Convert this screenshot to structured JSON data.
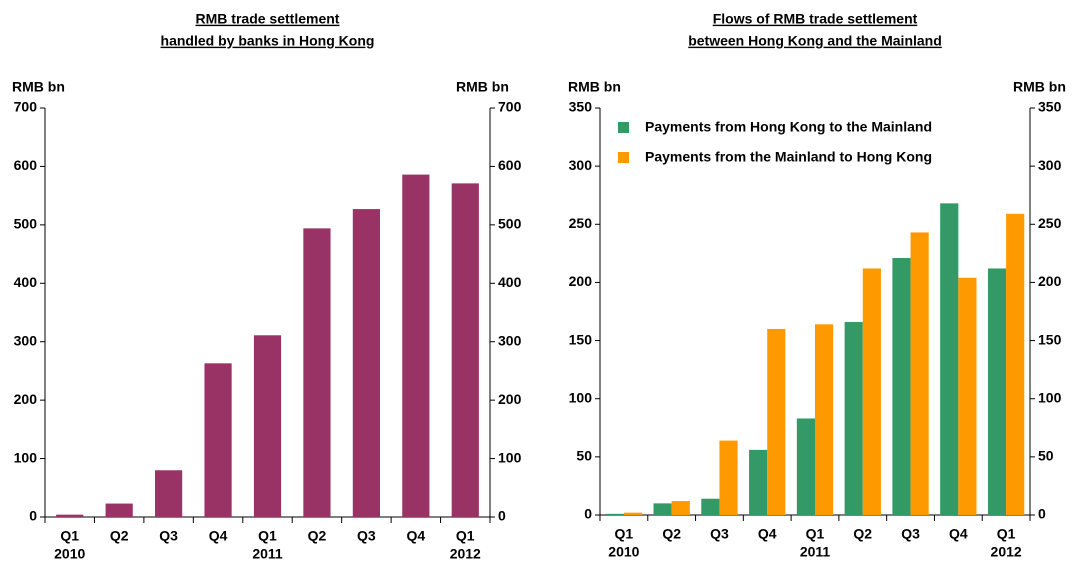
{
  "chart_data": [
    {
      "type": "bar",
      "title_lines": [
        "RMB trade settlement",
        "handled by banks in Hong Kong"
      ],
      "y_label": "RMB bn",
      "y2_label": "RMB bn",
      "categories": [
        "Q1",
        "Q2",
        "Q3",
        "Q4",
        "Q1",
        "Q2",
        "Q3",
        "Q4",
        "Q1"
      ],
      "category_years": [
        "2010",
        null,
        null,
        null,
        "2011",
        null,
        null,
        null,
        "2012"
      ],
      "series": [
        {
          "name": null,
          "color": "#993366",
          "values": [
            4,
            23,
            80,
            263,
            311,
            494,
            527,
            586,
            571
          ]
        }
      ],
      "ylim": [
        0,
        700
      ],
      "yticks": [
        0,
        100,
        200,
        300,
        400,
        500,
        600,
        700
      ],
      "y2lim": [
        0,
        700
      ],
      "y2ticks": [
        0,
        100,
        200,
        300,
        400,
        500,
        600,
        700
      ]
    },
    {
      "type": "bar",
      "title_lines": [
        "Flows of RMB trade settlement",
        "between Hong Kong and the Mainland"
      ],
      "y_label": "RMB bn",
      "y2_label": "RMB bn",
      "categories": [
        "Q1",
        "Q2",
        "Q3",
        "Q4",
        "Q1",
        "Q2",
        "Q3",
        "Q4",
        "Q1"
      ],
      "category_years": [
        "2010",
        null,
        null,
        null,
        "2011",
        null,
        null,
        null,
        "2012"
      ],
      "series": [
        {
          "name": "Payments from Hong Kong to the Mainland",
          "color": "#339966",
          "values": [
            1,
            10,
            14,
            56,
            83,
            166,
            221,
            268,
            212
          ]
        },
        {
          "name": "Payments from the Mainland to Hong Kong",
          "color": "#ff9900",
          "values": [
            2,
            12,
            64,
            160,
            164,
            212,
            243,
            204,
            259
          ]
        }
      ],
      "ylim": [
        0,
        350
      ],
      "yticks": [
        0,
        50,
        100,
        150,
        200,
        250,
        300,
        350
      ],
      "y2lim": [
        0,
        350
      ],
      "y2ticks": [
        0,
        50,
        100,
        150,
        200,
        250,
        300,
        350
      ],
      "legend": "upper left"
    }
  ]
}
